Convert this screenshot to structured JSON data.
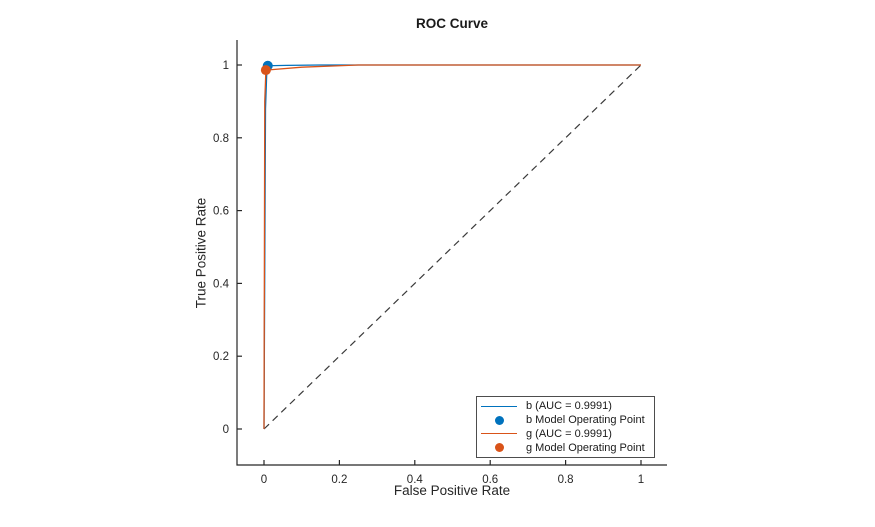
{
  "figure": {
    "title": "ROC Curve",
    "xlabel": "False Positive Rate",
    "ylabel": "True Positive Rate"
  },
  "chart_data": {
    "type": "line",
    "title": "ROC Curve",
    "xlabel": "False Positive Rate",
    "ylabel": "True Positive Rate",
    "xlim": [
      -0.07,
      1.07
    ],
    "ylim": [
      -0.1,
      1.06
    ],
    "x_ticks": [
      0,
      0.2,
      0.4,
      0.6,
      0.8,
      1
    ],
    "y_ticks": [
      0,
      0.2,
      0.4,
      0.6,
      0.8,
      1
    ],
    "grid": false,
    "legend_position": "southeast",
    "axis_color": "#262626",
    "series": [
      {
        "name": "b (AUC = 0.9991)",
        "color": "#0072BD",
        "style": "solid",
        "points": [
          [
            0,
            0
          ],
          [
            0.004,
            0.88
          ],
          [
            0.007,
            0.97
          ],
          [
            0.01,
            0.998
          ],
          [
            0.06,
            0.999
          ],
          [
            0.15,
            1
          ],
          [
            1,
            1
          ]
        ]
      },
      {
        "name": "g (AUC = 0.9991)",
        "color": "#D95319",
        "style": "solid",
        "points": [
          [
            0,
            0
          ],
          [
            0.002,
            0.9
          ],
          [
            0.005,
            0.986
          ],
          [
            0.1,
            0.994
          ],
          [
            0.25,
            1
          ],
          [
            1,
            1
          ]
        ]
      }
    ],
    "markers": [
      {
        "name": "b Model Operating Point",
        "color": "#0072BD",
        "point": [
          0.01,
          0.998
        ]
      },
      {
        "name": "g Model Operating Point",
        "color": "#D95319",
        "point": [
          0.005,
          0.986
        ]
      }
    ],
    "reference_line": {
      "name": "chance-diagonal",
      "points": [
        [
          0,
          0
        ],
        [
          1,
          1
        ]
      ],
      "style": "dashed",
      "color": "#3a3a3a"
    },
    "auc": {
      "b": 0.9991,
      "g": 0.9991
    }
  },
  "legend": {
    "entries": [
      {
        "swatch": "line",
        "color": "#0072BD",
        "label": "b (AUC = 0.9991)"
      },
      {
        "swatch": "marker",
        "color": "#0072BD",
        "label": "b Model Operating Point"
      },
      {
        "swatch": "line",
        "color": "#D95319",
        "label": "g (AUC = 0.9991)"
      },
      {
        "swatch": "marker",
        "color": "#D95319",
        "label": "g Model Operating Point"
      }
    ]
  }
}
